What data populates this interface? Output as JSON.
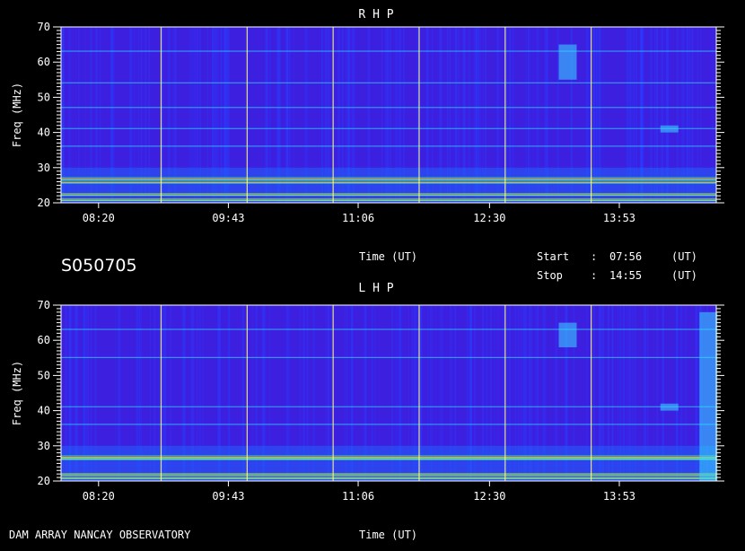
{
  "footer": {
    "station": "DAM ARRAY   NANCAY OBSERVATORY",
    "time_label": "Time (UT)"
  },
  "meta": {
    "date_code": "S050705",
    "start_label": "Start",
    "stop_label": "Stop",
    "colon": ":",
    "start_time": "07:56",
    "stop_time": "14:55",
    "ut": "(UT)",
    "mid_time_label": "Time (UT)"
  },
  "colors": {
    "background": "#000000",
    "spectrum_base": "#3d1fe0",
    "grid_line": "#ffff80",
    "rfi_red": "#ff2020"
  },
  "chart_data": [
    {
      "type": "heatmap",
      "title": "R H P",
      "ylabel": "Freq (MHz)",
      "xlabel": "",
      "ylim": [
        20,
        70
      ],
      "yticks": [
        20,
        30,
        40,
        50,
        60,
        70
      ],
      "xlim": [
        "07:56",
        "14:55"
      ],
      "xtick_labels": [
        "08:20",
        "09:43",
        "11:06",
        "12:30",
        "13:53"
      ],
      "vertical_markers": [
        "09:00",
        "09:55",
        "10:50",
        "11:45",
        "12:40",
        "13:35"
      ],
      "interference_bands_mhz": [
        21,
        22.5,
        26,
        27,
        36,
        41,
        47,
        54,
        63
      ],
      "emission_bursts": [
        {
          "time": "13:20",
          "freq_range": [
            55,
            65
          ]
        },
        {
          "time": "14:25",
          "freq_range": [
            40,
            42
          ]
        }
      ]
    },
    {
      "type": "heatmap",
      "title": "L H P",
      "ylabel": "Freq (MHz)",
      "xlabel": "Time (UT)",
      "ylim": [
        20,
        70
      ],
      "yticks": [
        20,
        30,
        40,
        50,
        60,
        70
      ],
      "xlim": [
        "07:56",
        "14:55"
      ],
      "xtick_labels": [
        "08:20",
        "09:43",
        "11:06",
        "12:30",
        "13:53"
      ],
      "vertical_markers": [
        "09:00",
        "09:55",
        "10:50",
        "11:45",
        "12:40",
        "13:35"
      ],
      "interference_bands_mhz": [
        21,
        22,
        26.5,
        27,
        36,
        41,
        55,
        63
      ],
      "emission_bursts": [
        {
          "time": "13:20",
          "freq_range": [
            58,
            65
          ]
        },
        {
          "time": "14:25",
          "freq_range": [
            40,
            42
          ]
        },
        {
          "time": "14:50",
          "freq_range": [
            20,
            68
          ]
        }
      ]
    }
  ]
}
